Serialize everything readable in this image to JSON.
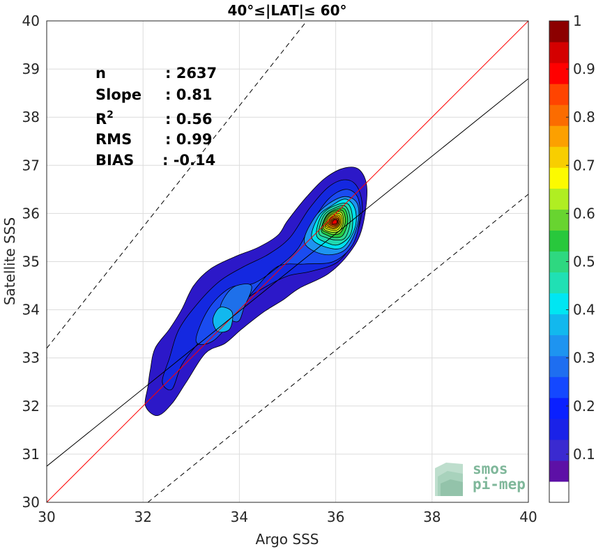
{
  "chart_data": {
    "type": "heatmap",
    "subtype": "filled-density-contour",
    "title": "40°≤|LAT|≤ 60°",
    "xlabel": "Argo SSS",
    "ylabel": "Satellite SSS",
    "xlim": [
      30,
      40
    ],
    "ylim": [
      30,
      40
    ],
    "xticks": [
      "30",
      "32",
      "34",
      "36",
      "38",
      "40"
    ],
    "yticks": [
      "30",
      "31",
      "32",
      "33",
      "34",
      "35",
      "36",
      "37",
      "38",
      "39",
      "40"
    ],
    "grid": true,
    "stats": [
      {
        "key": "n",
        "value": ": 2637"
      },
      {
        "key": "Slope",
        "value": ": 0.81"
      },
      {
        "key": "R",
        "sup": "2",
        "value": ": 0.56"
      },
      {
        "key": "RMS",
        "value": ": 0.99"
      },
      {
        "key": "BIAS",
        "value": ": -0.14"
      }
    ],
    "lines": [
      {
        "kind": "one-to-one",
        "color": "#ff0000",
        "dash": false,
        "x": [
          30,
          40
        ],
        "y": [
          30,
          40
        ]
      },
      {
        "kind": "regression-fit",
        "color": "#000000",
        "dash": false,
        "x": [
          30,
          40
        ],
        "y": [
          30.75,
          38.8
        ]
      },
      {
        "kind": "upper-bound",
        "color": "#000000",
        "dash": true,
        "x": [
          30,
          35.4
        ],
        "y": [
          33.2,
          40
        ]
      },
      {
        "kind": "lower-bound",
        "color": "#000000",
        "dash": true,
        "x": [
          32.1,
          40
        ],
        "y": [
          30,
          36.4
        ]
      }
    ],
    "contour_levels": [
      0.05,
      0.1,
      0.15,
      0.2,
      0.25,
      0.3,
      0.35,
      0.4,
      0.45,
      0.5,
      0.55,
      0.6,
      0.65,
      0.7,
      0.75,
      0.8,
      0.85,
      0.9,
      0.95
    ],
    "density_peak": {
      "x": 36.0,
      "y": 35.85,
      "value": 1.0
    },
    "contours": [
      {
        "level": 0.05,
        "points": [
          [
            32.1,
            32.4
          ],
          [
            32.15,
            32.75
          ],
          [
            32.25,
            33.2
          ],
          [
            32.55,
            33.6
          ],
          [
            32.8,
            34.0
          ],
          [
            33.05,
            34.5
          ],
          [
            33.4,
            34.85
          ],
          [
            33.9,
            35.1
          ],
          [
            34.4,
            35.3
          ],
          [
            34.8,
            35.55
          ],
          [
            35.0,
            35.85
          ],
          [
            35.4,
            36.35
          ],
          [
            35.8,
            36.75
          ],
          [
            36.2,
            36.95
          ],
          [
            36.5,
            36.9
          ],
          [
            36.65,
            36.5
          ],
          [
            36.55,
            35.7
          ],
          [
            36.3,
            35.2
          ],
          [
            35.85,
            34.75
          ],
          [
            35.25,
            34.45
          ],
          [
            34.9,
            34.2
          ],
          [
            34.5,
            33.95
          ],
          [
            34.05,
            33.6
          ],
          [
            33.7,
            33.3
          ],
          [
            33.3,
            33.1
          ],
          [
            32.9,
            32.5
          ],
          [
            32.6,
            32.05
          ],
          [
            32.3,
            31.8
          ],
          [
            32.05,
            32.0
          ]
        ]
      },
      {
        "level": 0.1,
        "points": [
          [
            32.4,
            32.5
          ],
          [
            32.55,
            33.0
          ],
          [
            32.75,
            33.6
          ],
          [
            33.15,
            34.15
          ],
          [
            33.6,
            34.6
          ],
          [
            34.1,
            34.9
          ],
          [
            34.6,
            35.15
          ],
          [
            35.05,
            35.5
          ],
          [
            35.45,
            36.1
          ],
          [
            35.85,
            36.55
          ],
          [
            36.2,
            36.7
          ],
          [
            36.45,
            36.55
          ],
          [
            36.55,
            36.1
          ],
          [
            36.4,
            35.5
          ],
          [
            36.05,
            35.0
          ],
          [
            35.5,
            34.8
          ],
          [
            35.0,
            34.7
          ],
          [
            34.5,
            34.45
          ],
          [
            33.95,
            34.1
          ],
          [
            33.5,
            33.7
          ],
          [
            33.1,
            33.25
          ],
          [
            32.8,
            32.85
          ],
          [
            32.6,
            32.35
          ]
        ]
      },
      {
        "level": 0.15,
        "points": [
          [
            33.1,
            33.35
          ],
          [
            33.35,
            34.0
          ],
          [
            33.8,
            34.45
          ],
          [
            34.3,
            34.55
          ],
          [
            34.75,
            34.85
          ],
          [
            35.2,
            35.25
          ],
          [
            35.5,
            35.8
          ],
          [
            35.85,
            36.3
          ],
          [
            36.2,
            36.5
          ],
          [
            36.45,
            36.35
          ],
          [
            36.5,
            35.9
          ],
          [
            36.35,
            35.35
          ],
          [
            35.95,
            35.0
          ],
          [
            35.35,
            34.95
          ],
          [
            34.8,
            34.9
          ],
          [
            34.3,
            34.4
          ],
          [
            33.9,
            33.85
          ],
          [
            33.45,
            33.35
          ]
        ]
      },
      {
        "level": 0.2,
        "points": [
          [
            33.6,
            34.0
          ],
          [
            33.85,
            34.45
          ],
          [
            34.25,
            34.5
          ],
          [
            34.1,
            34.05
          ],
          [
            33.95,
            33.75
          ]
        ]
      },
      {
        "level": 0.25,
        "points": [
          [
            35.35,
            35.4
          ],
          [
            35.55,
            35.9
          ],
          [
            35.85,
            36.2
          ],
          [
            36.2,
            36.35
          ],
          [
            36.45,
            36.2
          ],
          [
            36.45,
            35.75
          ],
          [
            36.2,
            35.25
          ],
          [
            35.75,
            35.15
          ]
        ]
      },
      {
        "level": 0.3,
        "points": [
          [
            33.45,
            33.8
          ],
          [
            33.6,
            34.05
          ],
          [
            33.85,
            33.95
          ],
          [
            33.8,
            33.6
          ],
          [
            33.55,
            33.55
          ]
        ]
      },
      {
        "level": 0.35,
        "points": [
          [
            35.5,
            35.5
          ],
          [
            35.65,
            35.95
          ],
          [
            35.9,
            36.15
          ],
          [
            36.2,
            36.3
          ],
          [
            36.4,
            36.1
          ],
          [
            36.4,
            35.7
          ],
          [
            36.15,
            35.3
          ],
          [
            35.8,
            35.3
          ]
        ]
      },
      {
        "level": 0.4,
        "points": [
          [
            35.6,
            35.55
          ],
          [
            35.7,
            35.95
          ],
          [
            35.95,
            36.15
          ],
          [
            36.25,
            36.2
          ],
          [
            36.35,
            35.9
          ],
          [
            36.3,
            35.55
          ],
          [
            36.05,
            35.35
          ],
          [
            35.8,
            35.4
          ]
        ]
      },
      {
        "level": 0.45,
        "points": [
          [
            35.65,
            35.6
          ],
          [
            35.75,
            35.95
          ],
          [
            35.95,
            36.1
          ],
          [
            36.2,
            36.15
          ],
          [
            36.3,
            35.85
          ],
          [
            36.2,
            35.5
          ],
          [
            36.0,
            35.45
          ],
          [
            35.8,
            35.5
          ]
        ]
      },
      {
        "level": 0.5,
        "points": [
          [
            35.7,
            35.65
          ],
          [
            35.8,
            35.95
          ],
          [
            35.98,
            36.08
          ],
          [
            36.18,
            36.1
          ],
          [
            36.25,
            35.85
          ],
          [
            36.15,
            35.55
          ],
          [
            35.98,
            35.5
          ],
          [
            35.82,
            35.55
          ]
        ]
      },
      {
        "level": 0.55,
        "points": [
          [
            35.72,
            35.68
          ],
          [
            35.82,
            35.95
          ],
          [
            35.98,
            36.05
          ],
          [
            36.15,
            36.05
          ],
          [
            36.2,
            35.82
          ],
          [
            36.1,
            35.6
          ],
          [
            35.96,
            35.56
          ],
          [
            35.83,
            35.6
          ]
        ]
      },
      {
        "level": 0.6,
        "points": [
          [
            35.75,
            35.7
          ],
          [
            35.84,
            35.93
          ],
          [
            35.98,
            36.02
          ],
          [
            36.12,
            36.02
          ],
          [
            36.16,
            35.82
          ],
          [
            36.08,
            35.64
          ],
          [
            35.95,
            35.61
          ],
          [
            35.84,
            35.63
          ]
        ]
      },
      {
        "level": 0.65,
        "points": [
          [
            35.78,
            35.72
          ],
          [
            35.86,
            35.92
          ],
          [
            35.98,
            35.99
          ],
          [
            36.1,
            35.98
          ],
          [
            36.13,
            35.81
          ],
          [
            36.05,
            35.67
          ],
          [
            35.95,
            35.65
          ],
          [
            35.86,
            35.67
          ]
        ]
      },
      {
        "level": 0.7,
        "points": [
          [
            35.8,
            35.74
          ],
          [
            35.88,
            35.9
          ],
          [
            35.98,
            35.96
          ],
          [
            36.08,
            35.95
          ],
          [
            36.1,
            35.8
          ],
          [
            36.03,
            35.7
          ],
          [
            35.95,
            35.68
          ],
          [
            35.87,
            35.7
          ]
        ]
      },
      {
        "level": 0.75,
        "points": [
          [
            35.83,
            35.76
          ],
          [
            35.9,
            35.89
          ],
          [
            35.99,
            35.94
          ],
          [
            36.06,
            35.92
          ],
          [
            36.08,
            35.8
          ],
          [
            36.02,
            35.72
          ],
          [
            35.95,
            35.7
          ],
          [
            35.89,
            35.72
          ]
        ]
      },
      {
        "level": 0.8,
        "points": [
          [
            35.86,
            35.78
          ],
          [
            35.92,
            35.88
          ],
          [
            35.99,
            35.91
          ],
          [
            36.05,
            35.89
          ],
          [
            36.06,
            35.8
          ],
          [
            36.01,
            35.74
          ],
          [
            35.95,
            35.73
          ],
          [
            35.9,
            35.75
          ]
        ]
      },
      {
        "level": 0.85,
        "points": [
          [
            35.89,
            35.79
          ],
          [
            35.94,
            35.87
          ],
          [
            36.0,
            35.89
          ],
          [
            36.04,
            35.86
          ],
          [
            36.04,
            35.8
          ],
          [
            36.0,
            35.76
          ],
          [
            35.95,
            35.76
          ],
          [
            35.92,
            35.77
          ]
        ]
      },
      {
        "level": 0.9,
        "points": [
          [
            35.92,
            35.8
          ],
          [
            35.96,
            35.86
          ],
          [
            36.0,
            35.87
          ],
          [
            36.03,
            35.84
          ],
          [
            36.02,
            35.8
          ],
          [
            35.99,
            35.78
          ],
          [
            35.95,
            35.78
          ]
        ]
      }
    ],
    "colorbar": {
      "ticks": [
        "0.1",
        "0.2",
        "0.3",
        "0.4",
        "0.5",
        "0.6",
        "0.7",
        "0.8",
        "0.9",
        "1"
      ],
      "colors": [
        "#ffffff",
        "#5d10a6",
        "#3a2ad0",
        "#1a22e8",
        "#0a20ff",
        "#1448ff",
        "#1e6ef0",
        "#1e94f0",
        "#12b8ee",
        "#00e6f2",
        "#20e0b4",
        "#2ed880",
        "#28c83c",
        "#68d430",
        "#b0ee22",
        "#fcfa00",
        "#f8ce00",
        "#fca000",
        "#fb6c00",
        "#ff4400",
        "#ff0000",
        "#d40000",
        "#8c0000"
      ],
      "level_colors": [
        "#2c18c8",
        "#1428e0",
        "#1a4cf0",
        "#1e70ea",
        "#1e94f0",
        "#12b8ee",
        "#00e0ee",
        "#20d8b0",
        "#2ed890",
        "#28cc40",
        "#70d830",
        "#c0f020",
        "#fcf400",
        "#f8c800",
        "#fc9800",
        "#fb6400",
        "#ff3c00",
        "#ee0000",
        "#a80000"
      ]
    }
  },
  "logo": {
    "line1": "smos",
    "line2": "pi-mep"
  }
}
